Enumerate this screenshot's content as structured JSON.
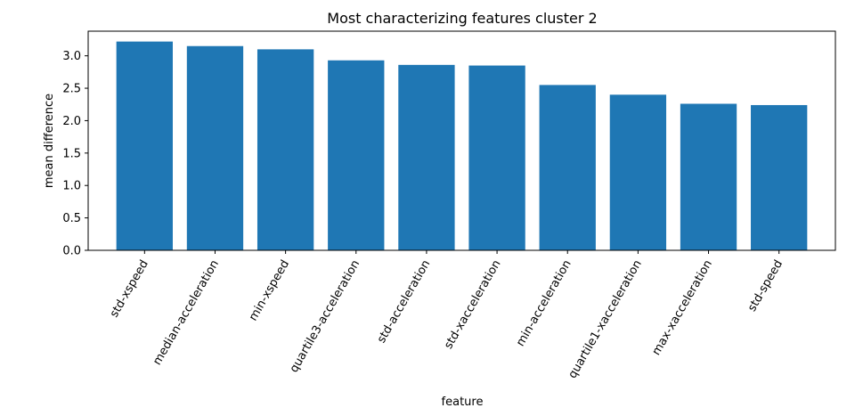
{
  "chart_data": {
    "type": "bar",
    "title": "Most characterizing features cluster 2",
    "xlabel": "feature",
    "ylabel": "mean difference",
    "categories": [
      "std-xspeed",
      "median-acceleration",
      "min-xspeed",
      "quartile3-acceleration",
      "std-acceleration",
      "std-xacceleration",
      "min-acceleration",
      "quartile1-xacceleration",
      "max-xacceleration",
      "std-speed"
    ],
    "values": [
      3.22,
      3.15,
      3.1,
      2.93,
      2.86,
      2.85,
      2.55,
      2.4,
      2.26,
      2.24
    ],
    "ylim": [
      0,
      3.38
    ],
    "yticks": [
      "0.0",
      "0.5",
      "1.0",
      "1.5",
      "2.0",
      "2.5",
      "3.0"
    ],
    "grid": false,
    "bar_color": "#1f77b4"
  }
}
